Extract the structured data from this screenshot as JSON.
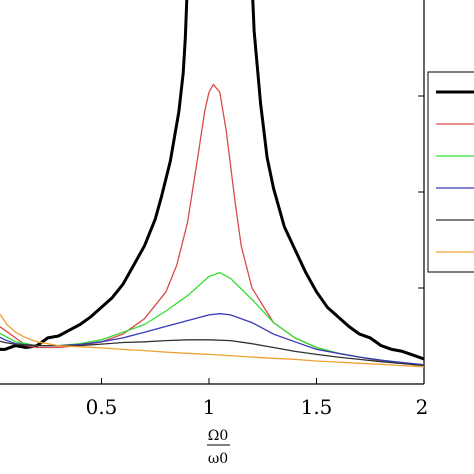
{
  "chart_data": {
    "type": "line",
    "xlabel": "Ω0 / ω0",
    "xlabel_top": "Ω0",
    "xlabel_bottom": "ω0",
    "xlim": [
      0,
      2
    ],
    "ylim": [
      0,
      1
    ],
    "grid": false,
    "legend": "right",
    "x_ticks": [
      {
        "value": 0.5,
        "label": "0.5"
      },
      {
        "value": 1,
        "label": "1"
      },
      {
        "value": 1.5,
        "label": "1.5"
      },
      {
        "value": 2,
        "label": "2"
      }
    ],
    "series": [
      {
        "color": "#000000",
        "width": 3,
        "points": [
          [
            0,
            0.09
          ],
          [
            0.05,
            0.09
          ],
          [
            0.1,
            0.1
          ],
          [
            0.15,
            0.095
          ],
          [
            0.2,
            0.1
          ],
          [
            0.25,
            0.12
          ],
          [
            0.3,
            0.125
          ],
          [
            0.35,
            0.14
          ],
          [
            0.4,
            0.155
          ],
          [
            0.45,
            0.175
          ],
          [
            0.5,
            0.2
          ],
          [
            0.55,
            0.225
          ],
          [
            0.6,
            0.26
          ],
          [
            0.65,
            0.31
          ],
          [
            0.7,
            0.36
          ],
          [
            0.75,
            0.43
          ],
          [
            0.78,
            0.49
          ],
          [
            0.82,
            0.58
          ],
          [
            0.86,
            0.71
          ],
          [
            0.88,
            0.81
          ],
          [
            0.89,
            0.9
          ],
          [
            0.9,
            1.05
          ],
          [
            1.2,
            1.05
          ],
          [
            1.21,
            0.92
          ],
          [
            1.24,
            0.73
          ],
          [
            1.27,
            0.59
          ],
          [
            1.3,
            0.51
          ],
          [
            1.35,
            0.41
          ],
          [
            1.4,
            0.35
          ],
          [
            1.45,
            0.29
          ],
          [
            1.5,
            0.24
          ],
          [
            1.55,
            0.2
          ],
          [
            1.6,
            0.175
          ],
          [
            1.65,
            0.15
          ],
          [
            1.7,
            0.13
          ],
          [
            1.75,
            0.12
          ],
          [
            1.8,
            0.1
          ],
          [
            1.85,
            0.09
          ],
          [
            1.9,
            0.085
          ],
          [
            1.95,
            0.075
          ],
          [
            2,
            0.065
          ]
        ]
      },
      {
        "color": "#d94a4a",
        "width": 1.3,
        "points": [
          [
            0,
            0.16
          ],
          [
            0.05,
            0.14
          ],
          [
            0.1,
            0.12
          ],
          [
            0.15,
            0.1
          ],
          [
            0.2,
            0.095
          ],
          [
            0.3,
            0.095
          ],
          [
            0.4,
            0.1
          ],
          [
            0.5,
            0.11
          ],
          [
            0.6,
            0.13
          ],
          [
            0.7,
            0.17
          ],
          [
            0.8,
            0.24
          ],
          [
            0.85,
            0.31
          ],
          [
            0.9,
            0.42
          ],
          [
            0.95,
            0.6
          ],
          [
            0.98,
            0.71
          ],
          [
            1.0,
            0.76
          ],
          [
            1.02,
            0.78
          ],
          [
            1.05,
            0.76
          ],
          [
            1.08,
            0.66
          ],
          [
            1.12,
            0.48
          ],
          [
            1.15,
            0.36
          ],
          [
            1.2,
            0.25
          ],
          [
            1.3,
            0.16
          ],
          [
            1.4,
            0.12
          ],
          [
            1.5,
            0.095
          ],
          [
            1.6,
            0.08
          ],
          [
            1.7,
            0.07
          ],
          [
            1.8,
            0.06
          ],
          [
            1.9,
            0.055
          ],
          [
            2,
            0.05
          ]
        ]
      },
      {
        "color": "#33dd33",
        "width": 1.3,
        "points": [
          [
            0,
            0.14
          ],
          [
            0.05,
            0.125
          ],
          [
            0.1,
            0.11
          ],
          [
            0.2,
            0.1
          ],
          [
            0.3,
            0.1
          ],
          [
            0.4,
            0.105
          ],
          [
            0.5,
            0.115
          ],
          [
            0.6,
            0.135
          ],
          [
            0.7,
            0.155
          ],
          [
            0.8,
            0.19
          ],
          [
            0.9,
            0.23
          ],
          [
            0.95,
            0.255
          ],
          [
            1.0,
            0.28
          ],
          [
            1.05,
            0.29
          ],
          [
            1.1,
            0.275
          ],
          [
            1.2,
            0.22
          ],
          [
            1.3,
            0.16
          ],
          [
            1.4,
            0.12
          ],
          [
            1.5,
            0.095
          ],
          [
            1.6,
            0.08
          ],
          [
            1.7,
            0.07
          ],
          [
            1.8,
            0.062
          ],
          [
            1.9,
            0.055
          ],
          [
            2,
            0.05
          ]
        ]
      },
      {
        "color": "#3a3ab8",
        "width": 1.3,
        "points": [
          [
            0,
            0.13
          ],
          [
            0.05,
            0.115
          ],
          [
            0.1,
            0.105
          ],
          [
            0.2,
            0.1
          ],
          [
            0.3,
            0.1
          ],
          [
            0.4,
            0.103
          ],
          [
            0.5,
            0.11
          ],
          [
            0.6,
            0.12
          ],
          [
            0.7,
            0.135
          ],
          [
            0.8,
            0.15
          ],
          [
            0.9,
            0.165
          ],
          [
            1.0,
            0.18
          ],
          [
            1.05,
            0.183
          ],
          [
            1.1,
            0.18
          ],
          [
            1.2,
            0.16
          ],
          [
            1.3,
            0.13
          ],
          [
            1.4,
            0.11
          ],
          [
            1.5,
            0.09
          ],
          [
            1.6,
            0.08
          ],
          [
            1.7,
            0.07
          ],
          [
            1.8,
            0.062
          ],
          [
            1.9,
            0.056
          ],
          [
            2,
            0.05
          ]
        ]
      },
      {
        "color": "#333333",
        "width": 1.3,
        "points": [
          [
            0,
            0.115
          ],
          [
            0.05,
            0.108
          ],
          [
            0.1,
            0.103
          ],
          [
            0.2,
            0.1
          ],
          [
            0.3,
            0.1
          ],
          [
            0.4,
            0.1
          ],
          [
            0.5,
            0.104
          ],
          [
            0.6,
            0.108
          ],
          [
            0.7,
            0.11
          ],
          [
            0.8,
            0.113
          ],
          [
            0.9,
            0.115
          ],
          [
            1.0,
            0.115
          ],
          [
            1.1,
            0.113
          ],
          [
            1.2,
            0.105
          ],
          [
            1.3,
            0.095
          ],
          [
            1.4,
            0.085
          ],
          [
            1.5,
            0.077
          ],
          [
            1.6,
            0.07
          ],
          [
            1.7,
            0.064
          ],
          [
            1.8,
            0.058
          ],
          [
            1.9,
            0.053
          ],
          [
            2,
            0.048
          ]
        ]
      },
      {
        "color": "#f0a030",
        "width": 1.3,
        "points": [
          [
            0,
            0.2
          ],
          [
            0.03,
            0.18
          ],
          [
            0.06,
            0.155
          ],
          [
            0.1,
            0.135
          ],
          [
            0.15,
            0.12
          ],
          [
            0.2,
            0.11
          ],
          [
            0.3,
            0.1
          ],
          [
            0.4,
            0.097
          ],
          [
            0.5,
            0.094
          ],
          [
            0.6,
            0.09
          ],
          [
            0.7,
            0.087
          ],
          [
            0.8,
            0.083
          ],
          [
            0.9,
            0.08
          ],
          [
            1.0,
            0.077
          ],
          [
            1.1,
            0.074
          ],
          [
            1.2,
            0.07
          ],
          [
            1.3,
            0.067
          ],
          [
            1.4,
            0.064
          ],
          [
            1.5,
            0.06
          ],
          [
            1.6,
            0.057
          ],
          [
            1.7,
            0.054
          ],
          [
            1.8,
            0.051
          ],
          [
            1.9,
            0.048
          ],
          [
            2,
            0.045
          ]
        ]
      }
    ]
  }
}
